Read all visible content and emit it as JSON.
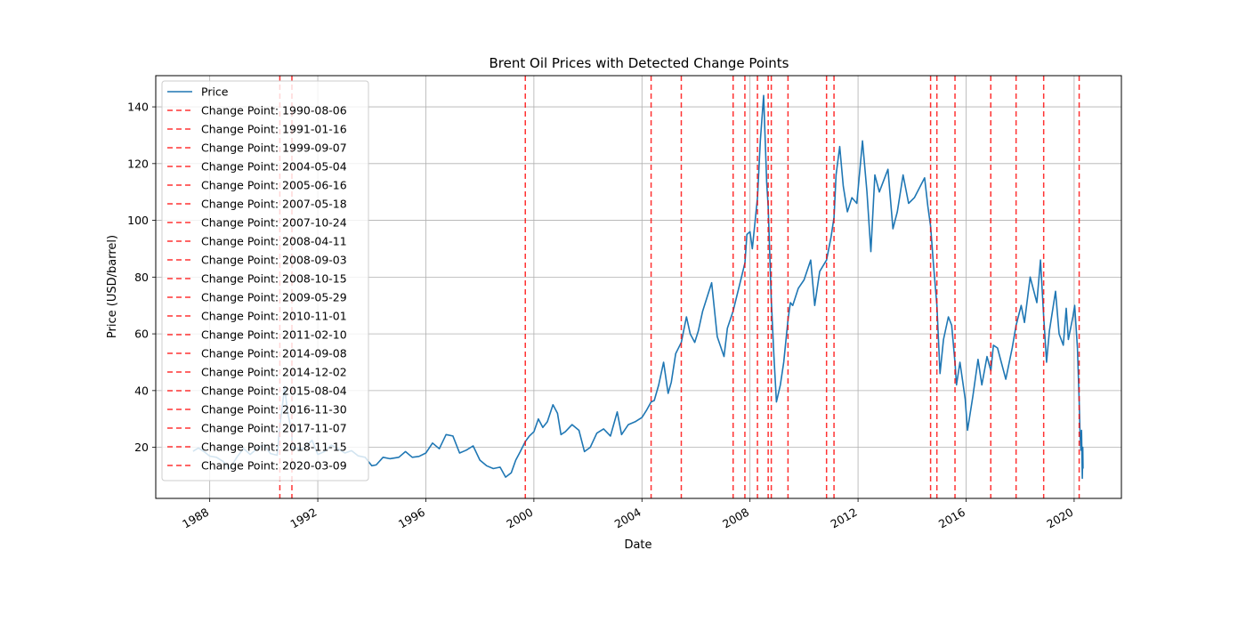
{
  "chart_data": {
    "type": "line",
    "title": "Brent Oil Prices with Detected Change Points",
    "xlabel": "Date",
    "ylabel": "Price (USD/barrel)",
    "xlim": [
      "1986-01-01",
      "2021-10-01"
    ],
    "ylim": [
      2,
      151
    ],
    "grid": true,
    "legend_position": "top-left",
    "x_ticks": [
      "1988",
      "1992",
      "1996",
      "2000",
      "2004",
      "2008",
      "2012",
      "2016",
      "2020"
    ],
    "y_ticks": [
      20,
      40,
      60,
      80,
      100,
      120,
      140
    ],
    "colors": {
      "price": "#1f77b4",
      "change_point": "#ff0000"
    },
    "series": [
      {
        "name": "Price",
        "points": [
          [
            "1987-05-20",
            18.6
          ],
          [
            "1987-08-01",
            19.8
          ],
          [
            "1987-10-15",
            18.5
          ],
          [
            "1988-01-01",
            16.9
          ],
          [
            "1988-04-01",
            16.5
          ],
          [
            "1988-07-01",
            15.0
          ],
          [
            "1988-10-01",
            12.5
          ],
          [
            "1989-01-01",
            16.5
          ],
          [
            "1989-04-01",
            19.6
          ],
          [
            "1989-07-01",
            17.5
          ],
          [
            "1989-10-01",
            19.5
          ],
          [
            "1990-01-01",
            20.9
          ],
          [
            "1990-04-01",
            17.8
          ],
          [
            "1990-07-01",
            17.2
          ],
          [
            "1990-08-06",
            27.5
          ],
          [
            "1990-09-15",
            36.0
          ],
          [
            "1990-10-10",
            41.5
          ],
          [
            "1990-11-15",
            33.0
          ],
          [
            "1990-12-31",
            27.0
          ],
          [
            "1991-01-16",
            28.0
          ],
          [
            "1991-01-18",
            20.0
          ],
          [
            "1991-04-01",
            19.5
          ],
          [
            "1991-07-01",
            19.5
          ],
          [
            "1991-10-15",
            22.5
          ],
          [
            "1992-01-01",
            17.5
          ],
          [
            "1992-04-01",
            18.5
          ],
          [
            "1992-07-01",
            20.8
          ],
          [
            "1992-10-01",
            19.5
          ],
          [
            "1993-01-01",
            18.0
          ],
          [
            "1993-04-01",
            18.8
          ],
          [
            "1993-07-01",
            17.0
          ],
          [
            "1993-10-01",
            16.5
          ],
          [
            "1993-12-31",
            13.5
          ],
          [
            "1994-03-01",
            13.8
          ],
          [
            "1994-06-01",
            16.5
          ],
          [
            "1994-09-01",
            16.0
          ],
          [
            "1995-01-01",
            16.5
          ],
          [
            "1995-04-01",
            18.5
          ],
          [
            "1995-07-01",
            16.5
          ],
          [
            "1995-10-01",
            16.8
          ],
          [
            "1996-01-01",
            18.0
          ],
          [
            "1996-04-01",
            21.5
          ],
          [
            "1996-07-01",
            19.5
          ],
          [
            "1996-10-01",
            24.5
          ],
          [
            "1997-01-01",
            24.0
          ],
          [
            "1997-04-01",
            18.0
          ],
          [
            "1997-07-01",
            19.0
          ],
          [
            "1997-10-01",
            20.5
          ],
          [
            "1998-01-01",
            15.5
          ],
          [
            "1998-04-01",
            13.5
          ],
          [
            "1998-07-01",
            12.5
          ],
          [
            "1998-10-01",
            13.0
          ],
          [
            "1998-12-15",
            9.5
          ],
          [
            "1999-03-01",
            11.0
          ],
          [
            "1999-05-01",
            15.5
          ],
          [
            "1999-07-01",
            18.5
          ],
          [
            "1999-09-07",
            22.0
          ],
          [
            "1999-11-01",
            24.0
          ],
          [
            "2000-01-01",
            25.5
          ],
          [
            "2000-03-01",
            30.0
          ],
          [
            "2000-05-01",
            27.0
          ],
          [
            "2000-07-01",
            29.0
          ],
          [
            "2000-09-15",
            35.0
          ],
          [
            "2000-11-15",
            32.0
          ],
          [
            "2001-01-01",
            24.5
          ],
          [
            "2001-03-01",
            25.5
          ],
          [
            "2001-06-01",
            28.0
          ],
          [
            "2001-09-01",
            26.0
          ],
          [
            "2001-11-15",
            18.5
          ],
          [
            "2002-02-01",
            20.0
          ],
          [
            "2002-05-01",
            25.0
          ],
          [
            "2002-08-01",
            26.5
          ],
          [
            "2002-11-01",
            24.0
          ],
          [
            "2003-02-01",
            32.5
          ],
          [
            "2003-04-01",
            24.5
          ],
          [
            "2003-07-01",
            28.0
          ],
          [
            "2003-10-01",
            29.0
          ],
          [
            "2004-01-01",
            30.5
          ],
          [
            "2004-03-01",
            33.0
          ],
          [
            "2004-05-04",
            36.0
          ],
          [
            "2004-06-15",
            36.5
          ],
          [
            "2004-08-15",
            42.0
          ],
          [
            "2004-10-20",
            50.0
          ],
          [
            "2004-12-20",
            39.0
          ],
          [
            "2005-02-01",
            43.0
          ],
          [
            "2005-04-01",
            53.0
          ],
          [
            "2005-06-16",
            57.0
          ],
          [
            "2005-08-25",
            66.0
          ],
          [
            "2005-10-15",
            60.0
          ],
          [
            "2005-12-15",
            57.0
          ],
          [
            "2006-02-01",
            61.0
          ],
          [
            "2006-04-01",
            68.0
          ],
          [
            "2006-08-01",
            78.0
          ],
          [
            "2006-10-15",
            59.0
          ],
          [
            "2007-01-15",
            52.0
          ],
          [
            "2007-03-01",
            62.0
          ],
          [
            "2007-05-18",
            68.0
          ],
          [
            "2007-08-01",
            76.0
          ],
          [
            "2007-10-24",
            85.0
          ],
          [
            "2007-11-20",
            95.0
          ],
          [
            "2008-01-01",
            96.0
          ],
          [
            "2008-02-01",
            90.0
          ],
          [
            "2008-04-11",
            108.0
          ],
          [
            "2008-05-20",
            128.0
          ],
          [
            "2008-07-03",
            144.0
          ],
          [
            "2008-08-15",
            113.0
          ],
          [
            "2008-09-03",
            105.0
          ],
          [
            "2008-10-15",
            72.0
          ],
          [
            "2008-11-20",
            52.0
          ],
          [
            "2008-12-24",
            36.0
          ],
          [
            "2009-02-15",
            42.0
          ],
          [
            "2009-04-01",
            50.0
          ],
          [
            "2009-05-29",
            65.0
          ],
          [
            "2009-06-30",
            71.0
          ],
          [
            "2009-08-01",
            70.0
          ],
          [
            "2009-10-15",
            76.0
          ],
          [
            "2010-01-01",
            79.0
          ],
          [
            "2010-04-01",
            86.0
          ],
          [
            "2010-05-25",
            70.0
          ],
          [
            "2010-08-01",
            82.0
          ],
          [
            "2010-11-01",
            86.0
          ],
          [
            "2010-12-31",
            94.0
          ],
          [
            "2011-02-10",
            101.0
          ],
          [
            "2011-03-10",
            116.0
          ],
          [
            "2011-04-28",
            126.0
          ],
          [
            "2011-06-15",
            112.0
          ],
          [
            "2011-08-10",
            103.0
          ],
          [
            "2011-10-10",
            108.0
          ],
          [
            "2011-12-15",
            106.0
          ],
          [
            "2012-03-01",
            128.0
          ],
          [
            "2012-05-01",
            110.0
          ],
          [
            "2012-06-22",
            89.0
          ],
          [
            "2012-08-15",
            116.0
          ],
          [
            "2012-10-15",
            110.0
          ],
          [
            "2013-02-08",
            118.0
          ],
          [
            "2013-04-17",
            97.0
          ],
          [
            "2013-06-15",
            103.0
          ],
          [
            "2013-09-01",
            116.0
          ],
          [
            "2013-11-15",
            106.0
          ],
          [
            "2014-02-01",
            108.0
          ],
          [
            "2014-06-19",
            115.0
          ],
          [
            "2014-08-01",
            105.0
          ],
          [
            "2014-09-08",
            98.0
          ],
          [
            "2014-10-15",
            85.0
          ],
          [
            "2014-12-02",
            70.0
          ],
          [
            "2015-01-13",
            46.0
          ],
          [
            "2015-03-01",
            58.0
          ],
          [
            "2015-05-06",
            66.0
          ],
          [
            "2015-06-20",
            63.0
          ],
          [
            "2015-08-04",
            50.0
          ],
          [
            "2015-08-24",
            42.0
          ],
          [
            "2015-10-10",
            50.0
          ],
          [
            "2015-12-20",
            37.0
          ],
          [
            "2016-01-20",
            26.0
          ],
          [
            "2016-04-01",
            38.0
          ],
          [
            "2016-06-10",
            51.0
          ],
          [
            "2016-08-01",
            42.0
          ],
          [
            "2016-10-10",
            52.0
          ],
          [
            "2016-11-30",
            47.0
          ],
          [
            "2017-01-05",
            56.0
          ],
          [
            "2017-03-01",
            55.0
          ],
          [
            "2017-06-21",
            44.0
          ],
          [
            "2017-09-15",
            55.0
          ],
          [
            "2017-11-07",
            63.0
          ],
          [
            "2018-01-15",
            70.0
          ],
          [
            "2018-03-01",
            64.0
          ],
          [
            "2018-05-17",
            80.0
          ],
          [
            "2018-08-15",
            71.0
          ],
          [
            "2018-10-03",
            86.0
          ],
          [
            "2018-11-15",
            66.0
          ],
          [
            "2018-12-24",
            50.0
          ],
          [
            "2019-02-01",
            61.0
          ],
          [
            "2019-04-25",
            75.0
          ],
          [
            "2019-06-12",
            60.0
          ],
          [
            "2019-08-07",
            56.0
          ],
          [
            "2019-09-16",
            69.0
          ],
          [
            "2019-10-15",
            58.0
          ],
          [
            "2019-12-15",
            66.0
          ],
          [
            "2020-01-08",
            70.0
          ],
          [
            "2020-02-15",
            55.0
          ],
          [
            "2020-03-09",
            36.0
          ],
          [
            "2020-03-20",
            25.0
          ],
          [
            "2020-04-02",
            19.0
          ],
          [
            "2020-04-10",
            26.0
          ],
          [
            "2020-04-21",
            9.1
          ],
          [
            "2020-04-27",
            20.0
          ],
          [
            "2020-04-30",
            12.5
          ]
        ]
      }
    ],
    "change_points": [
      "1990-08-06",
      "1991-01-16",
      "1999-09-07",
      "2004-05-04",
      "2005-06-16",
      "2007-05-18",
      "2007-10-24",
      "2008-04-11",
      "2008-09-03",
      "2008-10-15",
      "2009-05-29",
      "2010-11-01",
      "2011-02-10",
      "2014-09-08",
      "2014-12-02",
      "2015-08-04",
      "2016-11-30",
      "2017-11-07",
      "2018-11-15",
      "2020-03-09"
    ],
    "legend": {
      "price_label": "Price",
      "change_point_prefix": "Change Point: "
    }
  }
}
